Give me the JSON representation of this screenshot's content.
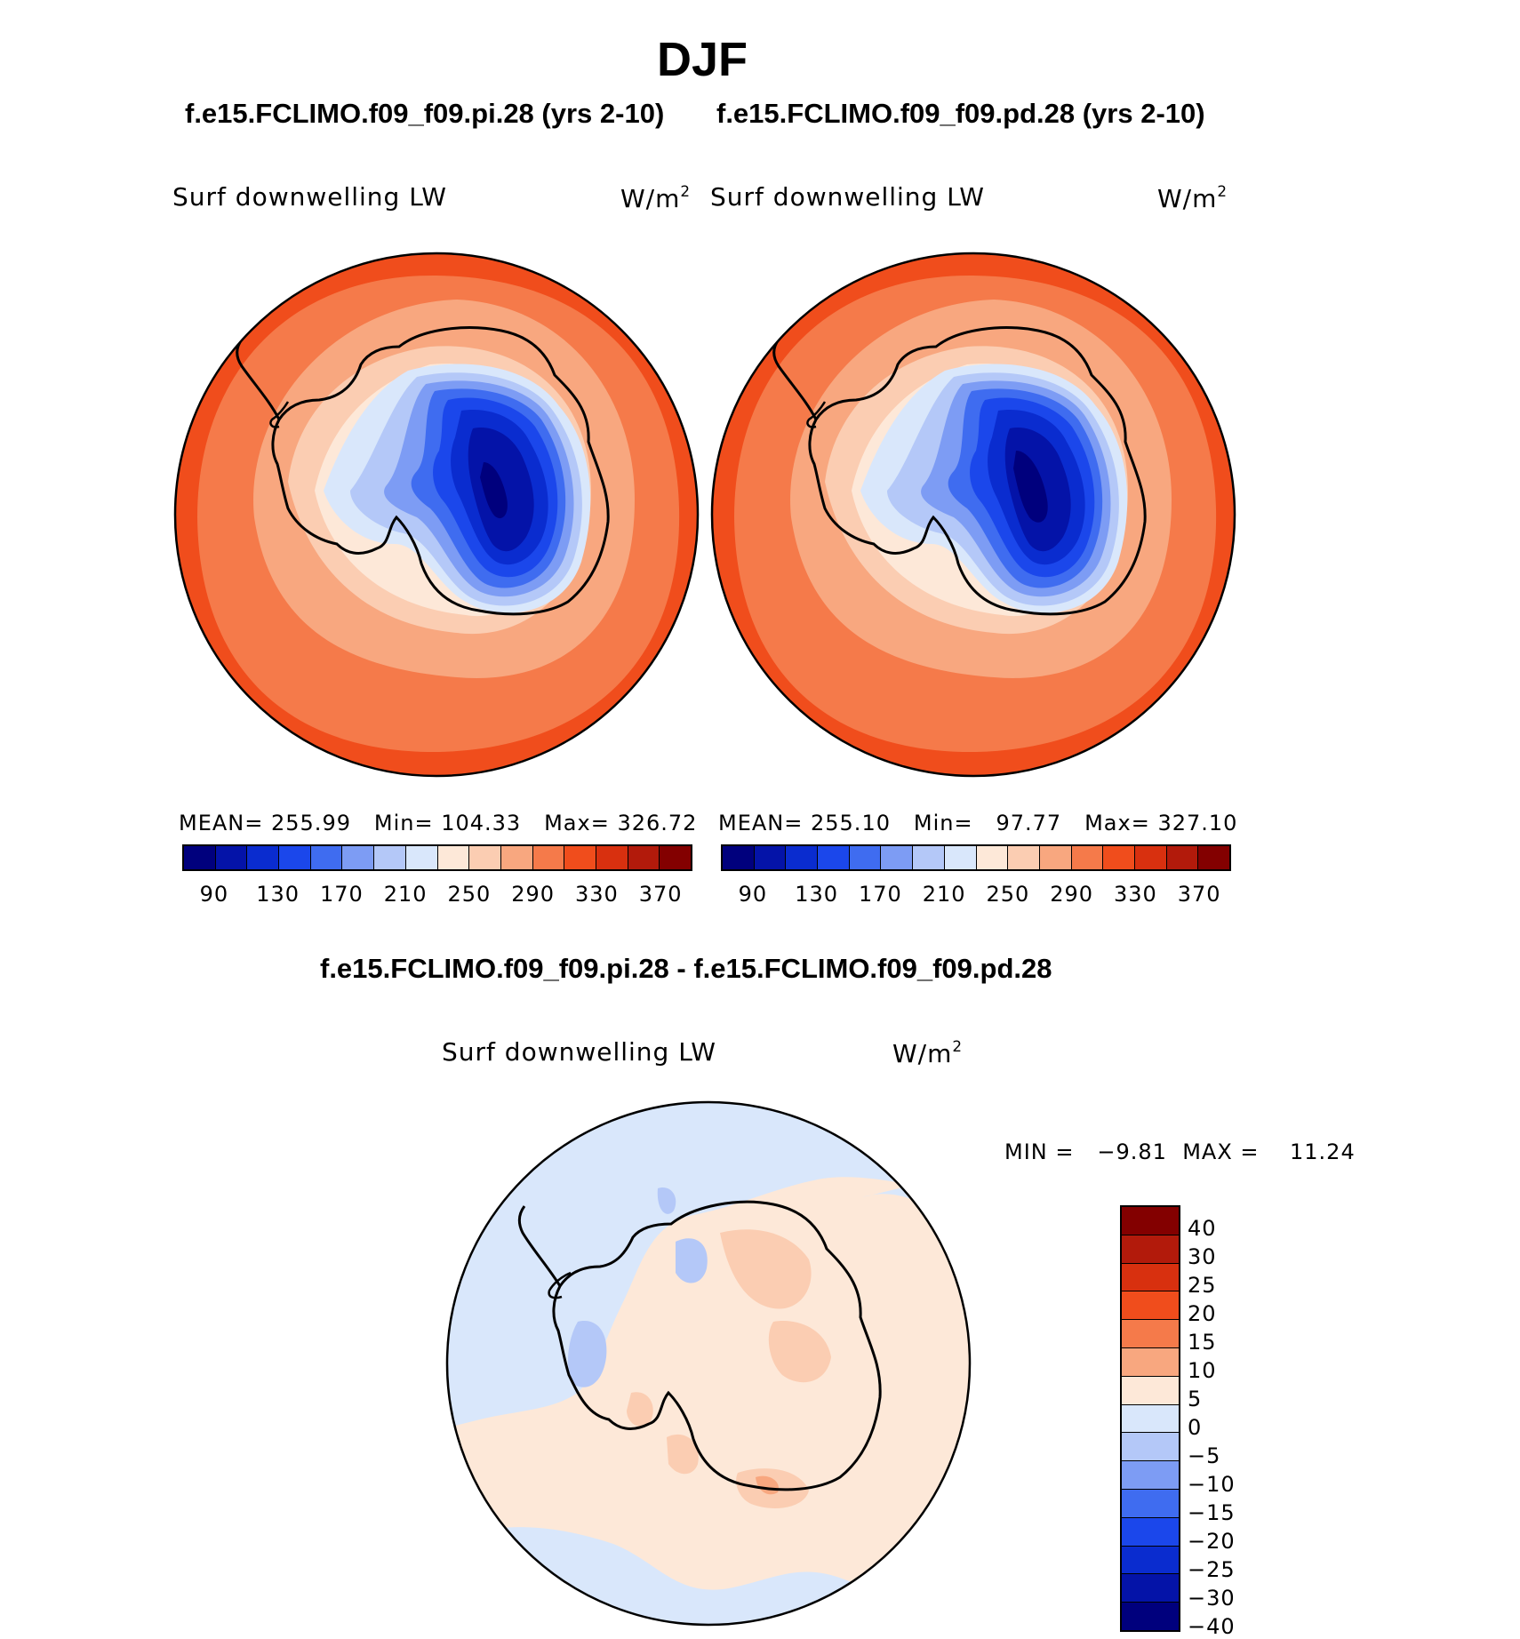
{
  "title": "DJF",
  "subtitles": {
    "left": "f.e15.FCLIMO.f09_f09.pi.28 (yrs 2-10)",
    "right": "f.e15.FCLIMO.f09_f09.pd.28 (yrs 2-10)",
    "diff": "f.e15.FCLIMO.f09_f09.pi.28 - f.e15.FCLIMO.f09_f09.pd.28"
  },
  "variable": "Surf downwelling LW",
  "units": "W/m",
  "units_exp": "2",
  "panel_left": {
    "mean_label": "MEAN=",
    "mean": "255.99",
    "min_label": "Min=",
    "min": "104.33",
    "max_label": "Max=",
    "max": "326.72"
  },
  "panel_right": {
    "mean_label": "MEAN=",
    "mean": "255.10",
    "min_label": "Min=",
    "min": "97.77",
    "max_label": "Max=",
    "max": "327.10"
  },
  "abs_colorbar": {
    "colors": [
      "#00007d",
      "#0413a8",
      "#0a2ccf",
      "#1b47eb",
      "#3f6cf0",
      "#7d9cf4",
      "#b4c8f8",
      "#d9e7fb",
      "#fde8d8",
      "#fbcdb2",
      "#f8a77f",
      "#f57a4a",
      "#f04d1c",
      "#d8300f",
      "#b21a0b",
      "#830000"
    ],
    "labels": [
      "90",
      "130",
      "170",
      "210",
      "250",
      "290",
      "330",
      "370"
    ]
  },
  "diff_stats": {
    "min_label": "MIN =",
    "min": "−9.81",
    "max_label": "MAX =",
    "max": "11.24"
  },
  "diff_colorbar": {
    "colors": [
      "#830000",
      "#b21a0b",
      "#d8300f",
      "#f04d1c",
      "#f57a4a",
      "#f8a77f",
      "#fde8d8",
      "#d9e7fb",
      "#b4c8f8",
      "#7d9cf4",
      "#3f6cf0",
      "#1b47eb",
      "#0a2ccf",
      "#0413a8",
      "#00007d"
    ],
    "labels": [
      "40",
      "30",
      "25",
      "20",
      "15",
      "10",
      "5",
      "0",
      "−5",
      "−10",
      "−15",
      "−20",
      "−25",
      "−30",
      "−40"
    ]
  }
}
